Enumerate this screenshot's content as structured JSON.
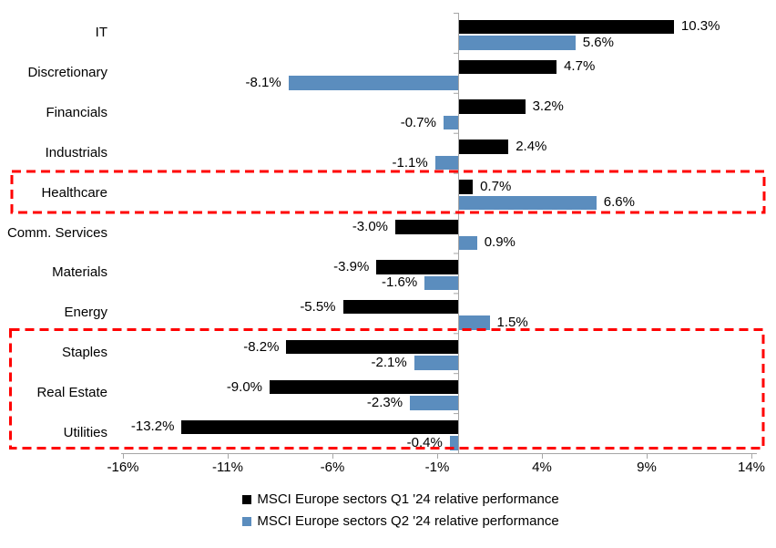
{
  "chart_data": {
    "type": "bar",
    "orientation": "horizontal",
    "title": "",
    "categories": [
      "IT",
      "Discretionary",
      "Financials",
      "Industrials",
      "Healthcare",
      "Comm. Services",
      "Materials",
      "Energy",
      "Staples",
      "Real Estate",
      "Utilities"
    ],
    "series": [
      {
        "name": "MSCI Europe sectors Q1 '24 relative performance",
        "color": "#000000",
        "values": [
          10.3,
          4.7,
          3.2,
          2.4,
          0.7,
          -3.0,
          -3.9,
          -5.5,
          -8.2,
          -9.0,
          -13.2
        ]
      },
      {
        "name": "MSCI Europe sectors Q2 '24 relative performance",
        "color": "#5B8DBE",
        "values": [
          5.6,
          -8.1,
          -0.7,
          -1.1,
          6.6,
          0.9,
          -1.6,
          1.5,
          -2.1,
          -2.3,
          -0.4
        ]
      }
    ],
    "data_labels": {
      "series_0": [
        "10.3%",
        "4.7%",
        "3.2%",
        "2.4%",
        "0.7%",
        "-3.0%",
        "-3.9%",
        "-5.5%",
        "-8.2%",
        "-9.0%",
        "-13.2%"
      ],
      "series_1": [
        "5.6%",
        "-8.1%",
        "-0.7%",
        "-1.1%",
        "6.6%",
        "0.9%",
        "-1.6%",
        "1.5%",
        "-2.1%",
        "-2.3%",
        "-0.4%"
      ]
    },
    "x_axis": {
      "tick_labels": [
        "-16%",
        "-11%",
        "-6%",
        "-1%",
        "4%",
        "9%",
        "14%"
      ],
      "tick_values": [
        -16,
        -11,
        -6,
        -1,
        4,
        9,
        14
      ],
      "range": [
        -17.5,
        15.2
      ],
      "axis_color": "#A6A6A6"
    },
    "grid": "off",
    "legend_position": "bottom-center",
    "highlights": [
      {
        "name": "highlight-box-healthcare",
        "rows": [
          "Healthcare"
        ],
        "color": "#FF0000",
        "style": "dashed"
      },
      {
        "name": "highlight-box-defensives",
        "rows": [
          "Staples",
          "Real Estate",
          "Utilities"
        ],
        "color": "#FF0000",
        "style": "dashed"
      }
    ]
  }
}
